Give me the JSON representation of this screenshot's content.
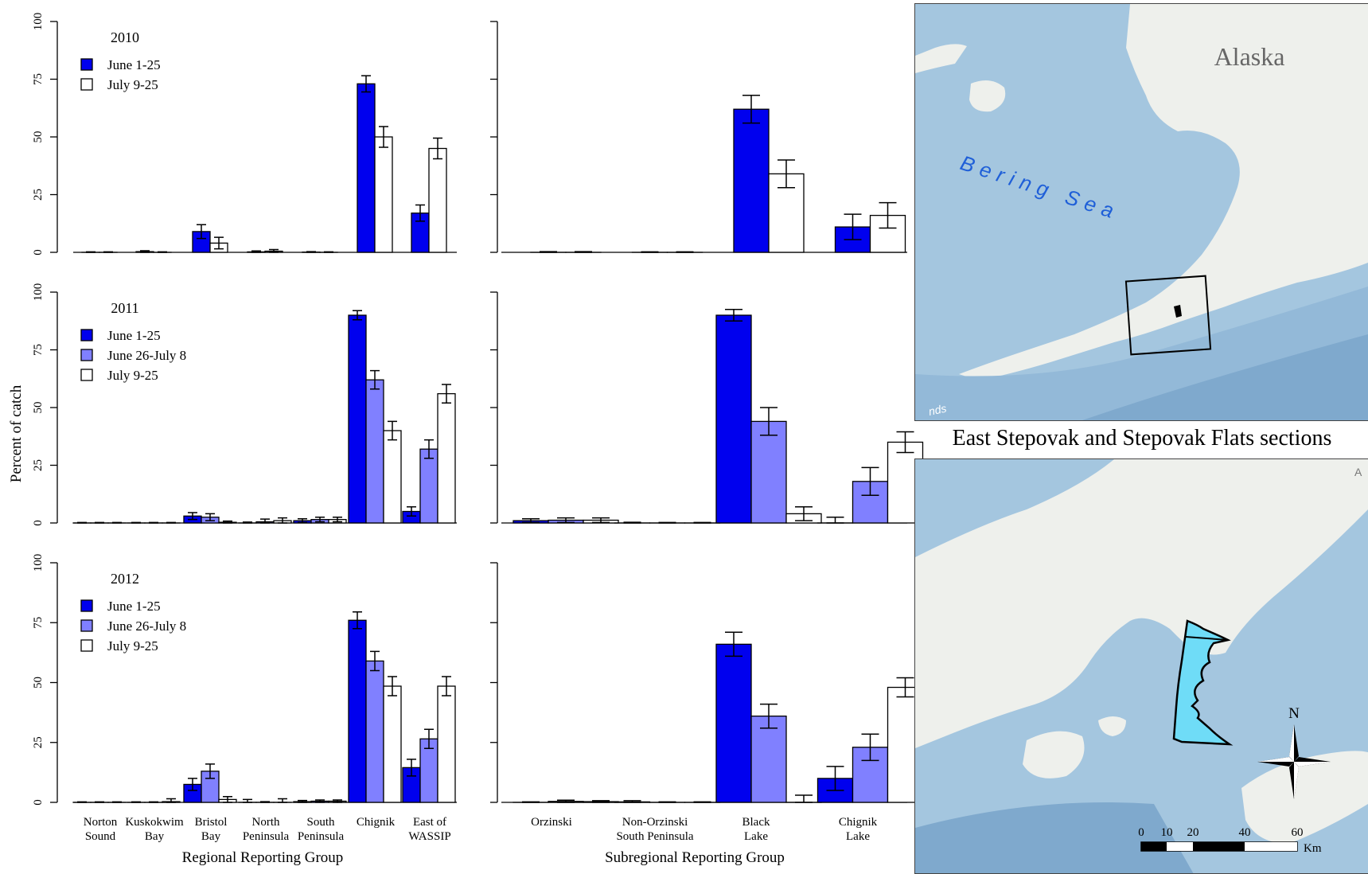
{
  "chart_data": [
    {
      "type": "bar",
      "panel": "regional-2010",
      "title": "2010",
      "categories": [
        "Norton Sound",
        "Kuskokwim Bay",
        "Bristol Bay",
        "North Peninsula",
        "South Peninsula",
        "Chignik",
        "East of WASSIP"
      ],
      "ylim": [
        0,
        100
      ],
      "yticks": [
        0,
        25,
        50,
        75,
        100
      ],
      "series": [
        {
          "name": "June 1-25",
          "values": [
            0,
            0.3,
            9,
            0.2,
            0.1,
            73,
            17
          ],
          "err": [
            0.2,
            0.4,
            3,
            0.4,
            0.2,
            3.5,
            3.5
          ]
        },
        {
          "name": "July 9-25",
          "values": [
            0,
            0,
            4,
            0.5,
            0,
            50,
            45
          ],
          "err": [
            0.2,
            0.2,
            2.5,
            0.7,
            0.2,
            4.5,
            4.5
          ]
        }
      ]
    },
    {
      "type": "bar",
      "panel": "subregional-2010",
      "categories": [
        "Orzinski",
        "Non-Orzinski South Peninsula",
        "Black Lake",
        "Chignik Lake"
      ],
      "ylim": [
        0,
        100
      ],
      "series": [
        {
          "name": "June 1-25",
          "values": [
            0,
            0,
            62,
            11
          ],
          "err": [
            0.3,
            0.2,
            6,
            5.5
          ]
        },
        {
          "name": "July 9-25",
          "values": [
            0,
            0,
            34,
            16
          ],
          "err": [
            0.3,
            0.2,
            6,
            5.5
          ]
        }
      ]
    },
    {
      "type": "bar",
      "panel": "regional-2011",
      "title": "2011",
      "categories": [
        "Norton Sound",
        "Kuskokwim Bay",
        "Bristol Bay",
        "North Peninsula",
        "South Peninsula",
        "Chignik",
        "East of WASSIP"
      ],
      "ylim": [
        0,
        100
      ],
      "yticks": [
        0,
        25,
        50,
        75,
        100
      ],
      "ylabel": "Percent of catch",
      "series": [
        {
          "name": "June 1-25",
          "values": [
            0,
            0,
            3,
            0,
            1,
            90,
            5
          ],
          "err": [
            0.2,
            0.2,
            1.5,
            0.4,
            0.8,
            2,
            2
          ]
        },
        {
          "name": "June 26-July 8",
          "values": [
            0,
            0,
            2.5,
            0.5,
            1.5,
            62,
            32
          ],
          "err": [
            0.2,
            0.2,
            1.5,
            1.2,
            1,
            4,
            4
          ]
        },
        {
          "name": "July 9-25",
          "values": [
            0,
            0,
            0.3,
            1,
            1.5,
            40,
            56
          ],
          "err": [
            0.2,
            0.2,
            0.5,
            1.2,
            1,
            4,
            4
          ]
        }
      ]
    },
    {
      "type": "bar",
      "panel": "subregional-2011",
      "categories": [
        "Orzinski",
        "Non-Orzinski South Peninsula",
        "Black Lake",
        "Chignik Lake"
      ],
      "ylim": [
        0,
        100
      ],
      "series": [
        {
          "name": "June 1-25",
          "values": [
            1,
            0,
            90,
            0
          ],
          "err": [
            0.8,
            0.3,
            2.5,
            2.5
          ]
        },
        {
          "name": "June 26-July 8",
          "values": [
            1.2,
            0,
            44,
            18
          ],
          "err": [
            1,
            0.2,
            6,
            6
          ]
        },
        {
          "name": "July 9-25",
          "values": [
            1.2,
            0,
            4,
            35
          ],
          "err": [
            1,
            0.2,
            3,
            4.5
          ]
        }
      ]
    },
    {
      "type": "bar",
      "panel": "regional-2012",
      "title": "2012",
      "categories": [
        "Norton Sound",
        "Kuskokwim Bay",
        "Bristol Bay",
        "North Peninsula",
        "South Peninsula",
        "Chignik",
        "East of WASSIP"
      ],
      "ylim": [
        0,
        100
      ],
      "yticks": [
        0,
        25,
        50,
        75,
        100
      ],
      "xlabel": "Regional Reporting Group",
      "series": [
        {
          "name": "June 1-25",
          "values": [
            0,
            0,
            7.5,
            0,
            0.3,
            76,
            14.5
          ],
          "err": [
            0.2,
            0.2,
            2.5,
            1.2,
            0.5,
            3.5,
            3.5
          ]
        },
        {
          "name": "June 26-July 8",
          "values": [
            0,
            0,
            13,
            0,
            0.5,
            59,
            26.5
          ],
          "err": [
            0.2,
            0.2,
            3,
            0.3,
            0.5,
            4,
            4
          ]
        },
        {
          "name": "July 9-25",
          "values": [
            0,
            0.3,
            1.2,
            0,
            0.5,
            48.5,
            48.5
          ],
          "err": [
            0.2,
            1.2,
            1.2,
            1.5,
            0.5,
            4,
            4
          ]
        }
      ]
    },
    {
      "type": "bar",
      "panel": "subregional-2012",
      "categories": [
        "Orzinski",
        "Non-Orzinski South Peninsula",
        "Black Lake",
        "Chignik Lake"
      ],
      "ylim": [
        0,
        100
      ],
      "xlabel": "Subregional Reporting Group",
      "series": [
        {
          "name": "June 1-25",
          "values": [
            0,
            0.2,
            66,
            10
          ],
          "err": [
            0.2,
            0.5,
            5,
            5
          ]
        },
        {
          "name": "June 26-July 8",
          "values": [
            0.4,
            0,
            36,
            23
          ],
          "err": [
            0.5,
            0.2,
            5,
            5.5
          ]
        },
        {
          "name": "July 9-25",
          "values": [
            0.3,
            0,
            0,
            48
          ],
          "err": [
            0.4,
            0.2,
            3,
            4
          ]
        }
      ]
    }
  ],
  "colors": {
    "june_1_25": "#0000ee",
    "june_26_july_8": "#8080ff",
    "july_9_25": "#ffffff"
  },
  "regional_tick_labels": [
    [
      "Norton",
      "Sound"
    ],
    [
      "Kuskokwim",
      "Bay"
    ],
    [
      "Bristol",
      "Bay"
    ],
    [
      "North",
      "Peninsula"
    ],
    [
      "South",
      "Peninsula"
    ],
    [
      "Chignik",
      ""
    ],
    [
      "East of",
      "WASSIP"
    ]
  ],
  "subregional_tick_labels": [
    [
      "Orzinski",
      ""
    ],
    [
      "Non-Orzinski",
      "South Peninsula"
    ],
    [
      "Black",
      "Lake"
    ],
    [
      "Chignik",
      "Lake"
    ]
  ],
  "map_top": {
    "region_label": "Alaska",
    "sea_label": "Bering Sea",
    "partial_label": "nds"
  },
  "map_caption": "East Stepovak and Stepovak Flats sections",
  "map_bottom": {
    "north_label": "N",
    "partial_label": "A",
    "scale_labels": [
      "0",
      "10",
      "20",
      "40",
      "60"
    ],
    "scale_unit": "Km"
  }
}
